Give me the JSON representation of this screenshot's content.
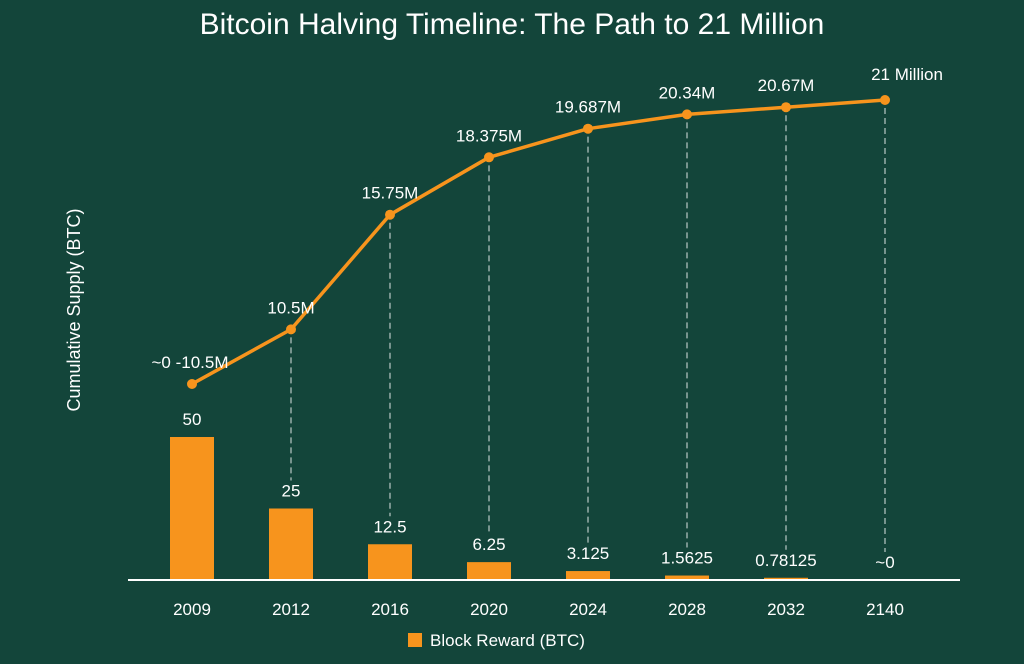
{
  "chart_data": {
    "type": "bar+line",
    "title": "Bitcoin Halving Timeline: The Path to 21 Million",
    "ylabel": "Cumulative Supply (BTC)",
    "categories": [
      "2009",
      "2012",
      "2016",
      "2020",
      "2024",
      "2028",
      "2032",
      "2140"
    ],
    "bar_series": {
      "name": "Block Reward (BTC)",
      "values": [
        50,
        25,
        12.5,
        6.25,
        3.125,
        1.5625,
        0.78125,
        0
      ],
      "labels": [
        "50",
        "25",
        "12.5",
        "6.25",
        "3.125",
        "1.5625",
        "0.78125",
        "~0"
      ]
    },
    "line_series": {
      "values": [
        8.0,
        10.5,
        15.75,
        18.375,
        19.687,
        20.34,
        20.67,
        21
      ],
      "labels": [
        "~0 -10.5M",
        "10.5M",
        "15.75M",
        "18.375M",
        "19.687M",
        "20.34M",
        "20.67M",
        "21 Million"
      ]
    },
    "bar_ylim": [
      0,
      50
    ],
    "line_ylim": [
      8.0,
      21
    ],
    "legend_position": "bottom-center",
    "colors": {
      "background": "#13453a",
      "bar": "#f7941d",
      "line": "#f7941d",
      "guide": "#ffffff",
      "text": "#ffffff"
    }
  }
}
